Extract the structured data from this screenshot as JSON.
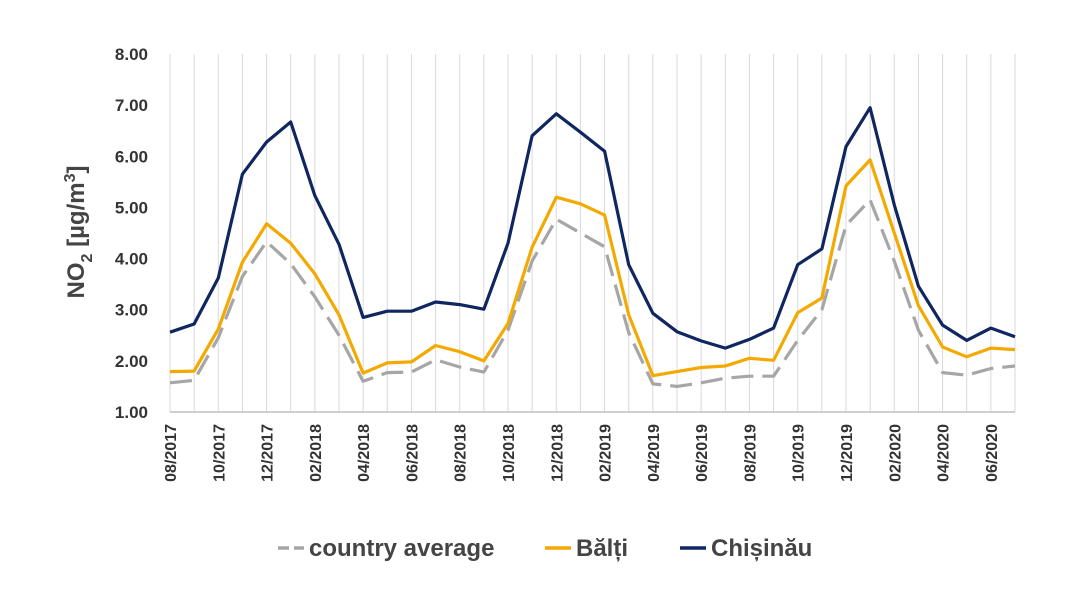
{
  "chart_data": {
    "type": "line",
    "ylabel": {
      "main": "NO",
      "sub": "2",
      "unit": " [µg/m",
      "sup": "3",
      "close": "]"
    },
    "ylim": [
      1.0,
      8.0
    ],
    "yticks": [
      1,
      2,
      3,
      4,
      5,
      6,
      7,
      8
    ],
    "ytick_labels": [
      "1.00",
      "2.00",
      "3.00",
      "4.00",
      "5.00",
      "6.00",
      "7.00",
      "8.00"
    ],
    "xlabels_shown": [
      "08/2017",
      "10/2017",
      "12/2017",
      "02/2018",
      "04/2018",
      "06/2018",
      "08/2018",
      "10/2018",
      "12/2018",
      "02/2019",
      "04/2019",
      "06/2019",
      "08/2019",
      "10/2019",
      "12/2019",
      "02/2020",
      "04/2020",
      "06/2020"
    ],
    "x": [
      "08/2017",
      "09/2017",
      "10/2017",
      "11/2017",
      "12/2017",
      "01/2018",
      "02/2018",
      "03/2018",
      "04/2018",
      "05/2018",
      "06/2018",
      "07/2018",
      "08/2018",
      "09/2018",
      "10/2018",
      "11/2018",
      "12/2018",
      "01/2019",
      "02/2019",
      "03/2019",
      "04/2019",
      "05/2019",
      "06/2019",
      "07/2019",
      "08/2019",
      "09/2019",
      "10/2019",
      "11/2019",
      "12/2019",
      "01/2020",
      "02/2020",
      "03/2020",
      "04/2020",
      "05/2020",
      "06/2020",
      "07/2020"
    ],
    "grid": "vertical",
    "legend_position": "bottom",
    "series": [
      {
        "name": "country average",
        "color": "#a6a6a6",
        "dash": true,
        "values": [
          1.57,
          1.62,
          2.45,
          3.65,
          4.33,
          3.9,
          3.25,
          2.5,
          1.6,
          1.77,
          1.78,
          2.02,
          1.88,
          1.78,
          2.6,
          3.95,
          4.77,
          4.5,
          4.23,
          2.55,
          1.55,
          1.5,
          1.57,
          1.66,
          1.7,
          1.7,
          2.4,
          3.0,
          4.65,
          5.15,
          3.95,
          2.6,
          1.77,
          1.72,
          1.85,
          1.9
        ]
      },
      {
        "name": "Bălți",
        "color": "#f4a900",
        "dash": false,
        "values": [
          1.79,
          1.8,
          2.62,
          3.93,
          4.68,
          4.3,
          3.7,
          2.9,
          1.76,
          1.96,
          1.98,
          2.3,
          2.18,
          2.0,
          2.73,
          4.22,
          5.2,
          5.07,
          4.85,
          2.9,
          1.71,
          1.79,
          1.87,
          1.9,
          2.05,
          2.01,
          2.94,
          3.23,
          5.42,
          5.93,
          4.5,
          3.08,
          2.27,
          2.08,
          2.25,
          2.22
        ]
      },
      {
        "name": "Chișinău",
        "color": "#0f2660",
        "dash": false,
        "values": [
          2.56,
          2.72,
          3.62,
          5.65,
          6.28,
          6.67,
          5.23,
          4.28,
          2.85,
          2.97,
          2.97,
          3.15,
          3.1,
          3.01,
          4.3,
          6.4,
          6.83,
          6.47,
          6.1,
          3.88,
          2.93,
          2.57,
          2.39,
          2.25,
          2.42,
          2.64,
          3.88,
          4.19,
          6.19,
          6.95,
          5.05,
          3.46,
          2.7,
          2.4,
          2.64,
          2.47
        ]
      }
    ]
  }
}
